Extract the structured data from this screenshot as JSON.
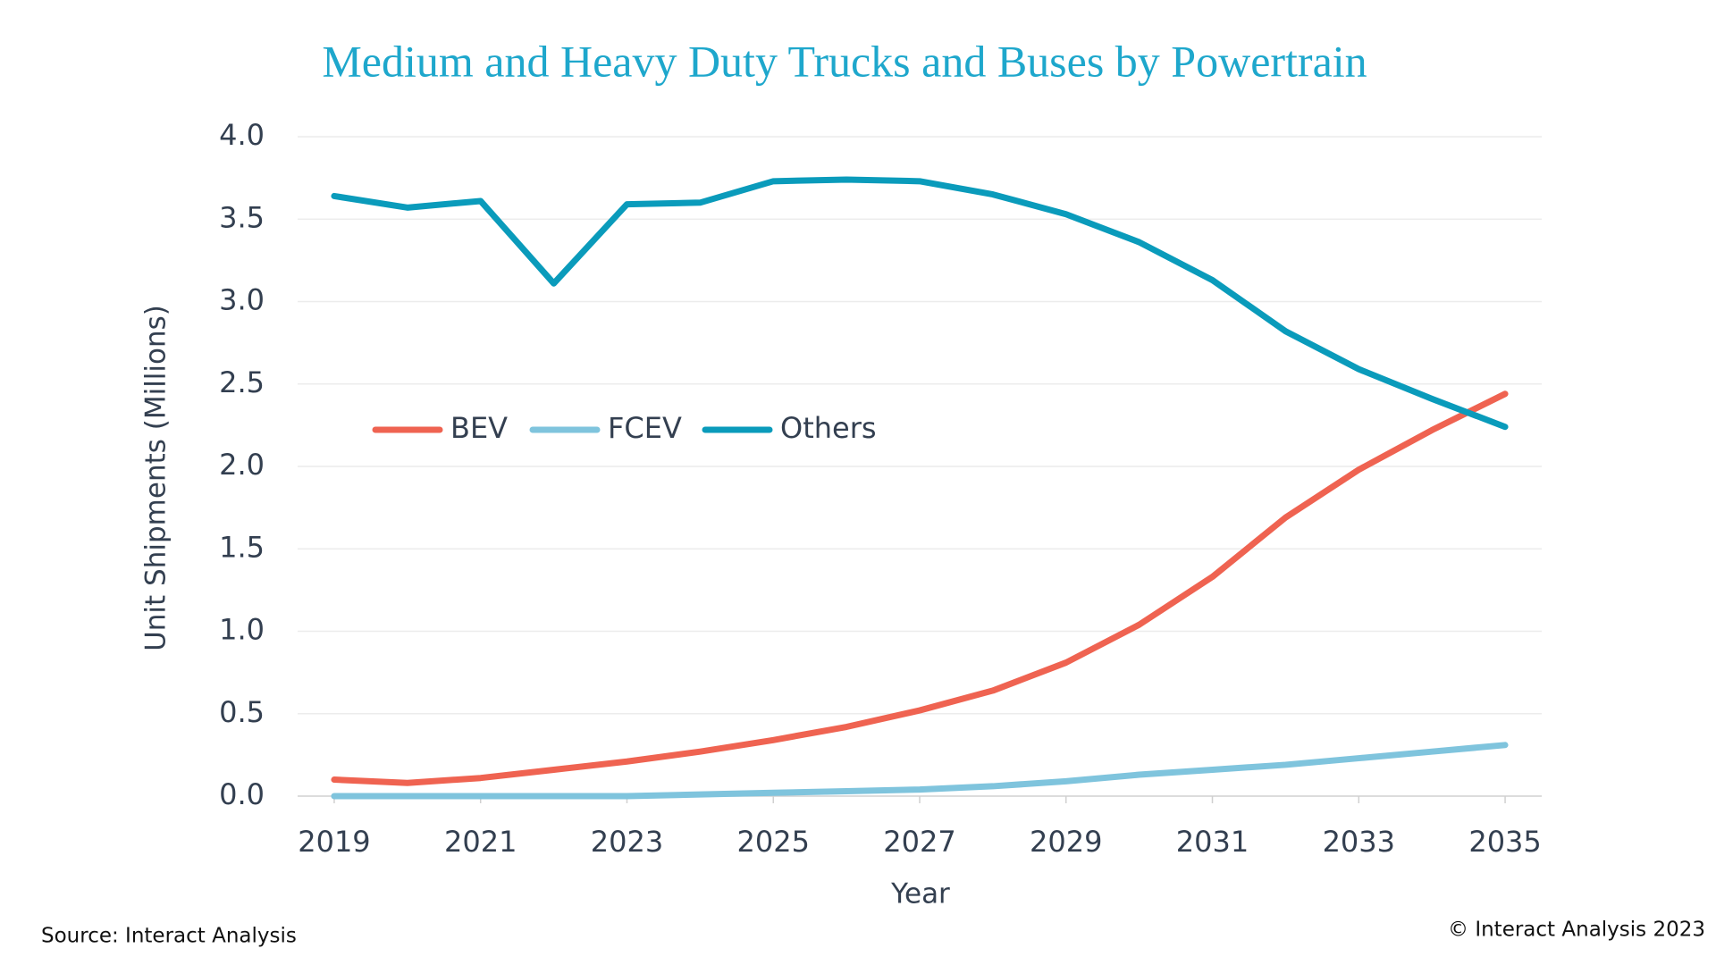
{
  "chart_data": {
    "type": "line",
    "title": "Medium and Heavy Duty Trucks and Buses by Powertrain",
    "x_label": "Year",
    "y_label": "Unit Shipments (Millions)",
    "source": "Source: Interact Analysis",
    "copyright": "© Interact Analysis 2023",
    "x": [
      2019,
      2020,
      2021,
      2022,
      2023,
      2024,
      2025,
      2026,
      2027,
      2028,
      2029,
      2030,
      2031,
      2032,
      2033,
      2034,
      2035
    ],
    "xlim": [
      2018.5,
      2035.5
    ],
    "xticks": [
      2019,
      2021,
      2023,
      2025,
      2027,
      2029,
      2031,
      2033,
      2035
    ],
    "ylim": [
      0,
      4
    ],
    "yticks": [
      {
        "value": 0,
        "label": "0.0"
      },
      0.5,
      {
        "value": 1,
        "label": "1.0"
      },
      1.5,
      {
        "value": 2,
        "label": "2.0"
      },
      2.5,
      {
        "value": 3,
        "label": "3.0"
      },
      3.5,
      {
        "value": 4,
        "label": "4.0"
      }
    ],
    "grid": true,
    "legend": "center-left",
    "series": [
      {
        "name": "BEV",
        "color": "#ef6351",
        "values": [
          0.1,
          0.08,
          0.11,
          0.16,
          0.21,
          0.27,
          0.34,
          0.42,
          0.52,
          0.64,
          0.81,
          1.04,
          1.33,
          1.69,
          1.98,
          2.22,
          2.44
        ]
      },
      {
        "name": "FCEV",
        "color": "#7fc4dd",
        "values": [
          0,
          0,
          0,
          0,
          0,
          0.01,
          0.02,
          0.03,
          0.04,
          0.06,
          0.09,
          0.13,
          0.16,
          0.19,
          0.23,
          0.27,
          0.31
        ]
      },
      {
        "name": "Others",
        "color": "#0a9bbb",
        "values": [
          3.64,
          3.57,
          3.61,
          3.11,
          3.59,
          3.6,
          3.73,
          3.74,
          3.73,
          3.65,
          3.53,
          3.36,
          3.13,
          2.82,
          2.59,
          2.41,
          2.24
        ]
      }
    ]
  }
}
